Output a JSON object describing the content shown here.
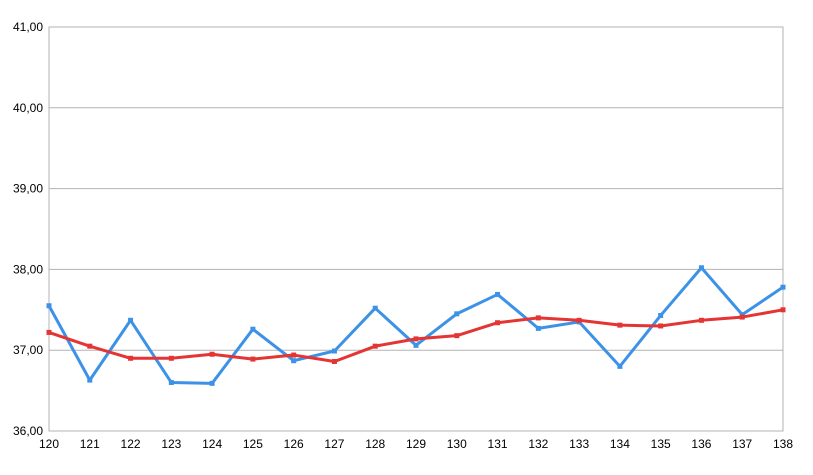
{
  "chart_data": {
    "type": "line",
    "title": "",
    "xlabel": "",
    "ylabel": "",
    "x": [
      "120",
      "121",
      "122",
      "123",
      "124",
      "125",
      "126",
      "127",
      "128",
      "129",
      "130",
      "131",
      "132",
      "133",
      "134",
      "135",
      "136",
      "137",
      "138"
    ],
    "y_ticks": [
      "36,00",
      "37,00",
      "38,00",
      "39,00",
      "40,00",
      "41,00"
    ],
    "ylim": [
      36,
      41
    ],
    "grid": true,
    "legend": "none",
    "series": [
      {
        "color": "#3c92e6",
        "values": [
          37.55,
          36.63,
          37.37,
          36.6,
          36.59,
          37.26,
          36.87,
          36.99,
          37.52,
          37.06,
          37.45,
          37.69,
          37.27,
          37.35,
          36.8,
          37.43,
          38.02,
          37.44,
          37.78
        ]
      },
      {
        "color": "#e53434",
        "values": [
          37.22,
          37.05,
          36.9,
          36.9,
          36.95,
          36.89,
          36.94,
          36.86,
          37.05,
          37.14,
          37.18,
          37.34,
          37.4,
          37.37,
          37.31,
          37.3,
          37.37,
          37.41,
          37.5
        ]
      }
    ]
  }
}
